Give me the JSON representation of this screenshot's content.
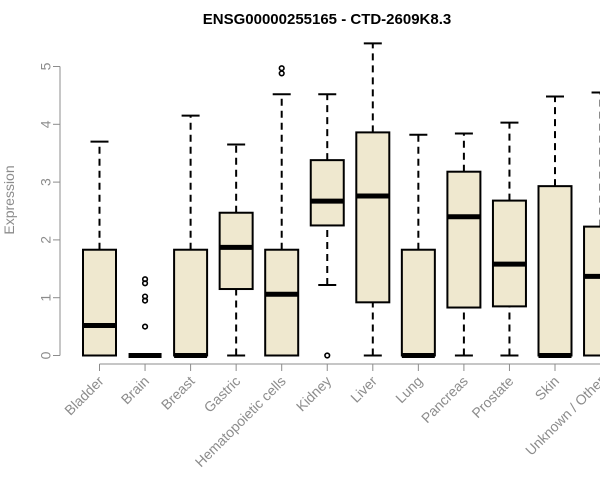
{
  "chart_data": {
    "type": "box",
    "title": "ENSG00000255165 - CTD-2609K8.3",
    "xlabel": "",
    "ylabel": "Expression",
    "ylim": [
      0,
      5.5
    ],
    "yticks": [
      0,
      1,
      2,
      3,
      4,
      5
    ],
    "box_color": "#efe8cf",
    "categories": [
      "Bladder",
      "Brain",
      "Breast",
      "Gastric",
      "Hematopoietic cells",
      "Kidney",
      "Liver",
      "Lung",
      "Pancreas",
      "Prostate",
      "Skin",
      "Unknown / Other"
    ],
    "boxes": [
      {
        "min": 0,
        "q1": 0,
        "median": 0.52,
        "q3": 1.83,
        "max": 3.7,
        "outliers": []
      },
      {
        "min": 0,
        "q1": 0,
        "median": 0,
        "q3": 0,
        "max": 0,
        "outliers": [
          0.5,
          0.95,
          1.02,
          1.25,
          1.32
        ]
      },
      {
        "min": 0,
        "q1": 0,
        "median": 0,
        "q3": 1.83,
        "max": 4.15,
        "outliers": []
      },
      {
        "min": 0,
        "q1": 1.15,
        "median": 1.87,
        "q3": 2.47,
        "max": 3.65,
        "outliers": []
      },
      {
        "min": 0,
        "q1": 0,
        "median": 1.06,
        "q3": 1.83,
        "max": 4.52,
        "outliers": [
          4.88,
          4.97
        ]
      },
      {
        "min": 1.22,
        "q1": 2.25,
        "median": 2.67,
        "q3": 3.38,
        "max": 4.52,
        "outliers": [
          0
        ]
      },
      {
        "min": 0,
        "q1": 0.92,
        "median": 2.76,
        "q3": 3.86,
        "max": 5.4,
        "outliers": []
      },
      {
        "min": 0,
        "q1": 0,
        "median": 0,
        "q3": 1.83,
        "max": 3.82,
        "outliers": []
      },
      {
        "min": 0,
        "q1": 0.83,
        "median": 2.4,
        "q3": 3.18,
        "max": 3.84,
        "outliers": []
      },
      {
        "min": 0,
        "q1": 0.85,
        "median": 1.58,
        "q3": 2.68,
        "max": 4.03,
        "outliers": []
      },
      {
        "min": 0,
        "q1": 0,
        "median": 0,
        "q3": 2.93,
        "max": 4.48,
        "outliers": []
      },
      {
        "min": 0,
        "q1": 0,
        "median": 1.37,
        "q3": 2.23,
        "max": 4.55,
        "outliers": []
      }
    ]
  }
}
